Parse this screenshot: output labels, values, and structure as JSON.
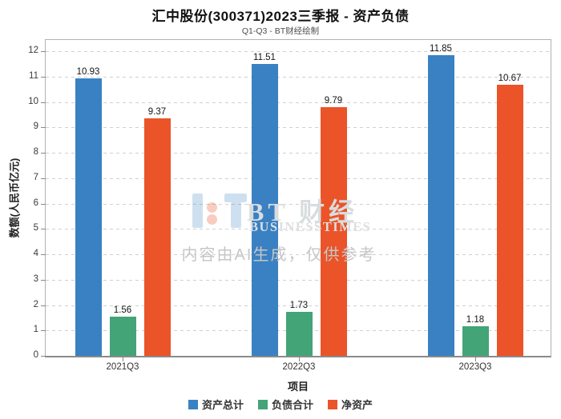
{
  "header": {
    "title": "汇中股份(300371)2023三季报 - 资产负债",
    "subtitle": "Q1-Q3 - BT财经绘制"
  },
  "chart_data": {
    "type": "bar",
    "title": "汇中股份(300371)2023三季报 - 资产负债",
    "subtitle": "Q1-Q3 - BT财经绘制",
    "categories": [
      "2021Q3",
      "2022Q3",
      "2023Q3"
    ],
    "series": [
      {
        "name": "资产总计",
        "color": "#3a81c3",
        "values": [
          10.93,
          11.51,
          11.85
        ]
      },
      {
        "name": "负债合计",
        "color": "#43a477",
        "values": [
          1.56,
          1.73,
          1.18
        ]
      },
      {
        "name": "净资产",
        "color": "#ea5428",
        "values": [
          9.37,
          9.79,
          10.67
        ]
      }
    ],
    "xlabel": "项目",
    "ylabel": "数额(人民币亿元)",
    "ylim": [
      0,
      12.45
    ],
    "yticks": [
      0,
      1,
      2,
      3,
      4,
      5,
      6,
      7,
      8,
      9,
      10,
      11,
      12
    ],
    "grid": true,
    "gridline_style": "dashed",
    "legend_position": "bottom",
    "value_labels": true
  },
  "watermark": {
    "brand": "BT 财经",
    "brand_sub": "BUSINESSTIMES",
    "notice": "内容由AI生成，仅供参考"
  }
}
